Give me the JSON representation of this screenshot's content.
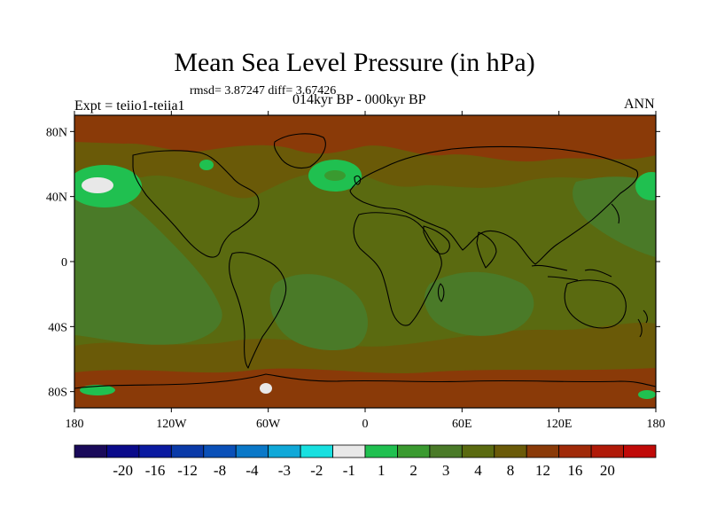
{
  "figure": {
    "title": "Mean Sea Level Pressure (in hPa)",
    "stats": "rmsd= 3.87247 diff= 3.67426",
    "left_label": "Expt = teiio1-teiia1",
    "center_label": "014kyr BP - 000kyr BP",
    "right_label": "ANN"
  },
  "axes": {
    "lat_ticks": [
      {
        "value": 80,
        "label": "80N"
      },
      {
        "value": 40,
        "label": "40N"
      },
      {
        "value": 0,
        "label": "0"
      },
      {
        "value": -40,
        "label": "40S"
      },
      {
        "value": -80,
        "label": "80S"
      }
    ],
    "lon_ticks": [
      {
        "value": -180,
        "label": "180"
      },
      {
        "value": -120,
        "label": "120W"
      },
      {
        "value": -60,
        "label": "60W"
      },
      {
        "value": 0,
        "label": "0"
      },
      {
        "value": 60,
        "label": "60E"
      },
      {
        "value": 120,
        "label": "120E"
      },
      {
        "value": 180,
        "label": "180"
      }
    ],
    "lon_range": [
      -180,
      180
    ],
    "lat_range": [
      -90,
      90
    ]
  },
  "colorbar": {
    "colors": [
      "#1a0a5a",
      "#0a0a8a",
      "#0a1aa0",
      "#0a3aa8",
      "#0a50b8",
      "#0a78c8",
      "#10a8d8",
      "#18e0e0",
      "#e8e8e8",
      "#20c050",
      "#3a9a30",
      "#4a7a28",
      "#5a6a10",
      "#6a5a08",
      "#8a3a08",
      "#a02a08",
      "#b01a08",
      "#c00a08"
    ],
    "labels": [
      "-20",
      "-16",
      "-12",
      "-8",
      "-4",
      "-3",
      "-2",
      "-1",
      "1",
      "2",
      "3",
      "4",
      "8",
      "12",
      "16",
      "20"
    ]
  },
  "field_colors": {
    "base": "#5a6a10",
    "four_to_eight": "#4a7a28",
    "three_to_four": "#3a9a30",
    "one_to_two": "#20c050",
    "near_zero": "#e8e8e8",
    "eight_to_twelve": "#6a5a08",
    "twelve_to_sixteen": "#8a3a08"
  }
}
